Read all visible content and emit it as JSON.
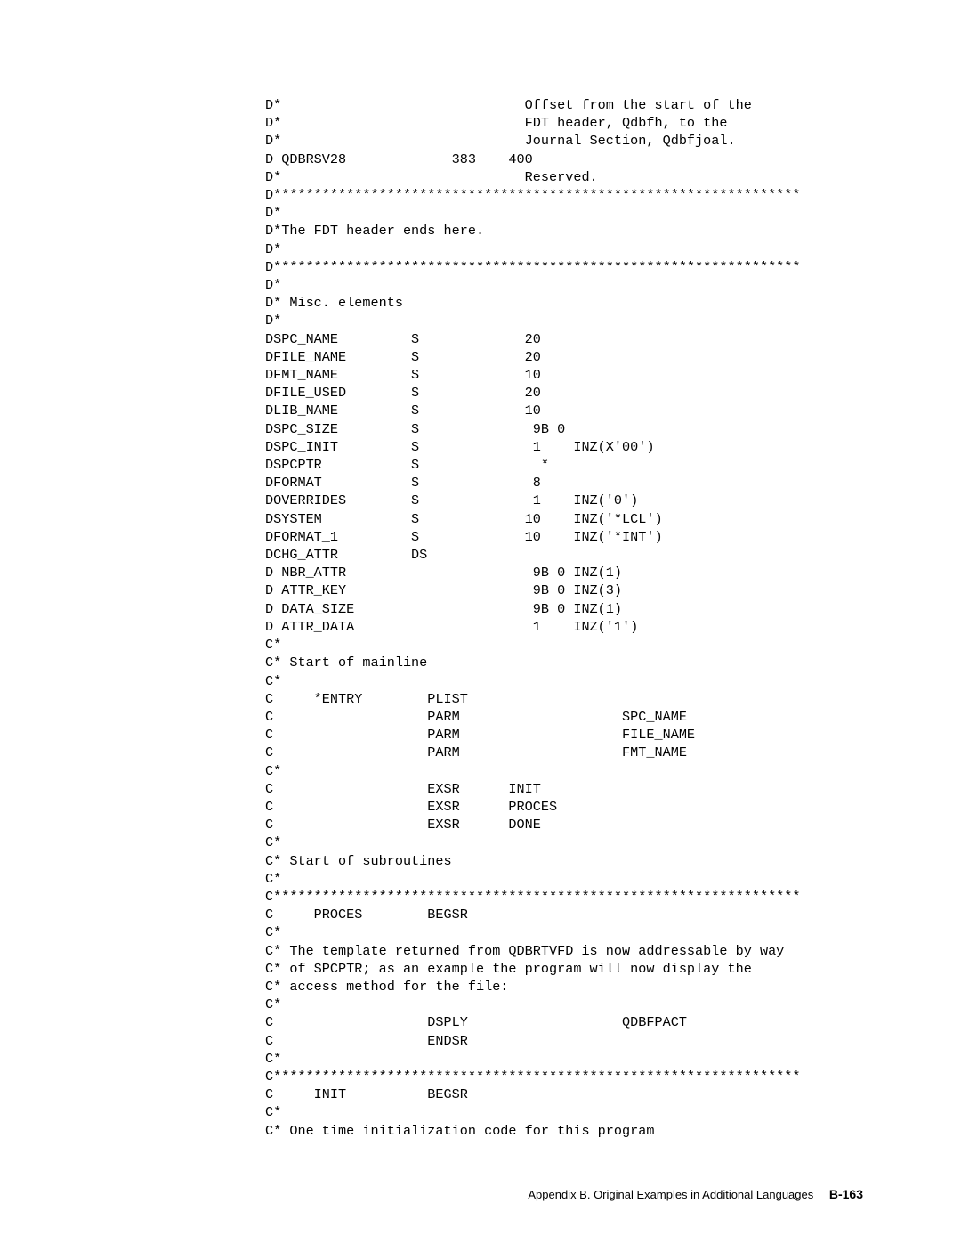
{
  "code": {
    "lines": [
      "D*                              Offset from the start of the",
      "D*                              FDT header, Qdbfh, to the",
      "D*                              Journal Section, Qdbfjoal.",
      "D QDBRSV28             383    400",
      "D*                              Reserved.",
      "D*****************************************************************",
      "D*",
      "D*The FDT header ends here.",
      "D*",
      "D*****************************************************************",
      "D*",
      "D* Misc. elements",
      "D*",
      "DSPC_NAME         S             20",
      "DFILE_NAME        S             20",
      "DFMT_NAME         S             10",
      "DFILE_USED        S             20",
      "DLIB_NAME         S             10",
      "DSPC_SIZE         S              9B 0",
      "DSPC_INIT         S              1    INZ(X'00')",
      "DSPCPTR           S               *",
      "DFORMAT           S              8",
      "DOVERRIDES        S              1    INZ('0')",
      "DSYSTEM           S             10    INZ('*LCL')",
      "DFORMAT_1         S             10    INZ('*INT')",
      "DCHG_ATTR         DS",
      "D NBR_ATTR                       9B 0 INZ(1)",
      "D ATTR_KEY                       9B 0 INZ(3)",
      "D DATA_SIZE                      9B 0 INZ(1)",
      "D ATTR_DATA                      1    INZ('1')",
      "C*",
      "C* Start of mainline",
      "C*",
      "C     *ENTRY        PLIST",
      "C                   PARM                    SPC_NAME",
      "C                   PARM                    FILE_NAME",
      "C                   PARM                    FMT_NAME",
      "C*",
      "C                   EXSR      INIT",
      "C                   EXSR      PROCES",
      "C                   EXSR      DONE",
      "C*",
      "C* Start of subroutines",
      "C*",
      "C*****************************************************************",
      "C     PROCES        BEGSR",
      "C*",
      "C* The template returned from QDBRTVFD is now addressable by way",
      "C* of SPCPTR; as an example the program will now display the",
      "C* access method for the file:",
      "C*",
      "C                   DSPLY                   QDBFPACT",
      "C                   ENDSR",
      "C*",
      "C*****************************************************************",
      "C     INIT          BEGSR",
      "C*",
      "C* One time initialization code for this program"
    ]
  },
  "footer": {
    "text": "Appendix B. Original Examples in Additional Languages",
    "page": "B-163"
  }
}
